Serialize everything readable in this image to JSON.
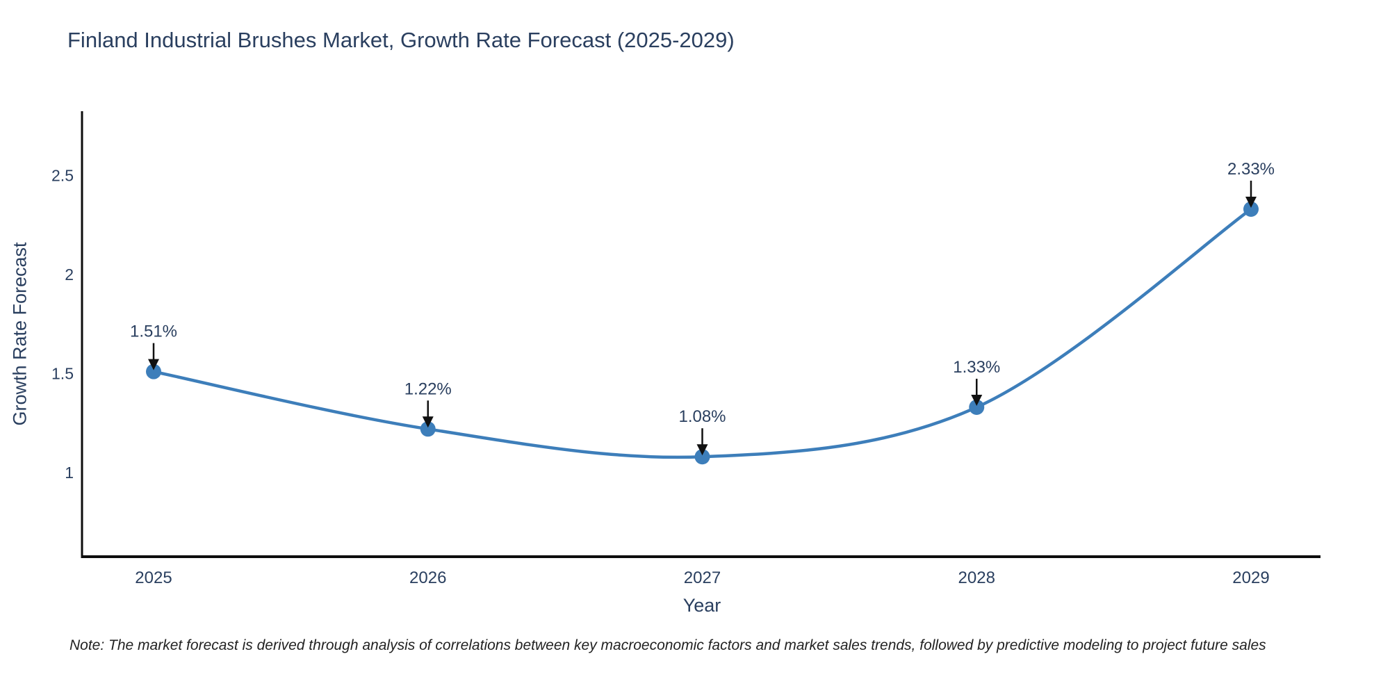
{
  "note": "Note: The market forecast is derived through analysis of correlations between key macroeconomic factors and market sales trends, followed by predictive modeling to project future sales",
  "colors": {
    "line": "#3d7eba",
    "marker": "#3d7eba",
    "text": "#2a3f5f",
    "axis": "#0d0d0d",
    "annotation_arrow": "#111111",
    "background": "#ffffff"
  },
  "chart_data": {
    "type": "line",
    "title": "Finland Industrial Brushes Market, Growth Rate Forecast (2025-2029)",
    "xlabel": "Year",
    "ylabel": "Growth Rate Forecast",
    "x": [
      2025,
      2026,
      2027,
      2028,
      2029
    ],
    "series": [
      {
        "name": "Growth Rate Forecast",
        "values": [
          1.51,
          1.22,
          1.08,
          1.33,
          2.33
        ],
        "point_labels": [
          "1.51%",
          "1.22%",
          "1.08%",
          "1.33%",
          "2.33%"
        ]
      }
    ],
    "x_tick_labels": [
      "2025",
      "2026",
      "2027",
      "2028",
      "2029"
    ],
    "y_ticks": [
      1,
      1.5,
      2,
      2.5
    ],
    "y_tick_labels": [
      "1",
      "1.5",
      "2",
      "2.5"
    ],
    "ylim": [
      0.58,
      2.82
    ],
    "xlim_years": [
      2024.74,
      2029.25
    ],
    "grid": false,
    "legend": false,
    "line_shape": "spline",
    "annotations": "value labels with down arrows above each point"
  }
}
